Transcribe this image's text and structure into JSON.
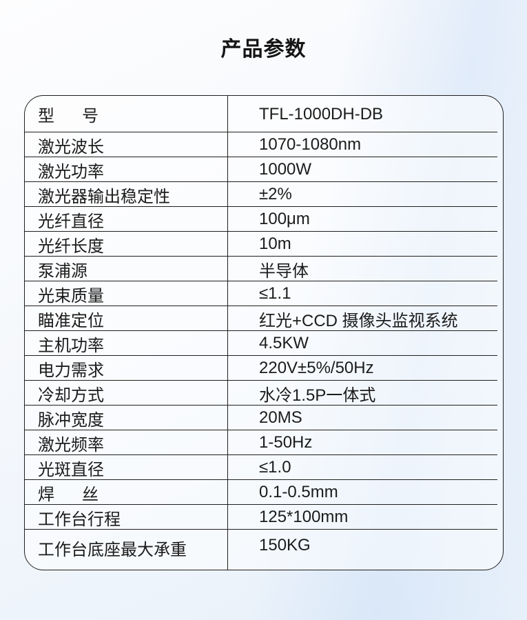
{
  "title": "产品参数",
  "table": {
    "rows": [
      {
        "label": "型      号",
        "value": "TFL-1000DH-DB"
      },
      {
        "label": "激光波长",
        "value": "1070-1080nm"
      },
      {
        "label": "激光功率",
        "value": "1000W"
      },
      {
        "label": "激光器输出稳定性",
        "value": "±2%"
      },
      {
        "label": "光纤直径",
        "value": "100μm"
      },
      {
        "label": "光纤长度",
        "value": "10m"
      },
      {
        "label": "泵浦源",
        "value": "半导体"
      },
      {
        "label": "光束质量",
        "value": "≤1.1"
      },
      {
        "label": "瞄准定位",
        "value": "红光+CCD 摄像头监视系统"
      },
      {
        "label": "主机功率",
        "value": "4.5KW"
      },
      {
        "label": "电力需求",
        "value": "220V±5%/50Hz"
      },
      {
        "label": "冷却方式",
        "value": "水冷1.5P一体式"
      },
      {
        "label": "脉冲宽度",
        "value": "20MS"
      },
      {
        "label": "激光频率",
        "value": "1-50Hz"
      },
      {
        "label": "光斑直径",
        "value": "≤1.0"
      },
      {
        "label": "焊      丝",
        "value": "0.1-0.5mm"
      },
      {
        "label": "工作台行程",
        "value": "125*100mm"
      },
      {
        "label": "工作台底座最大承重",
        "value": "150KG"
      }
    ]
  },
  "colors": {
    "line": "#1e1e1e",
    "text": "#1b1b1b",
    "background_tint": "#e7f0fa",
    "table_fill": "rgba(255,255,255,0.5)"
  }
}
